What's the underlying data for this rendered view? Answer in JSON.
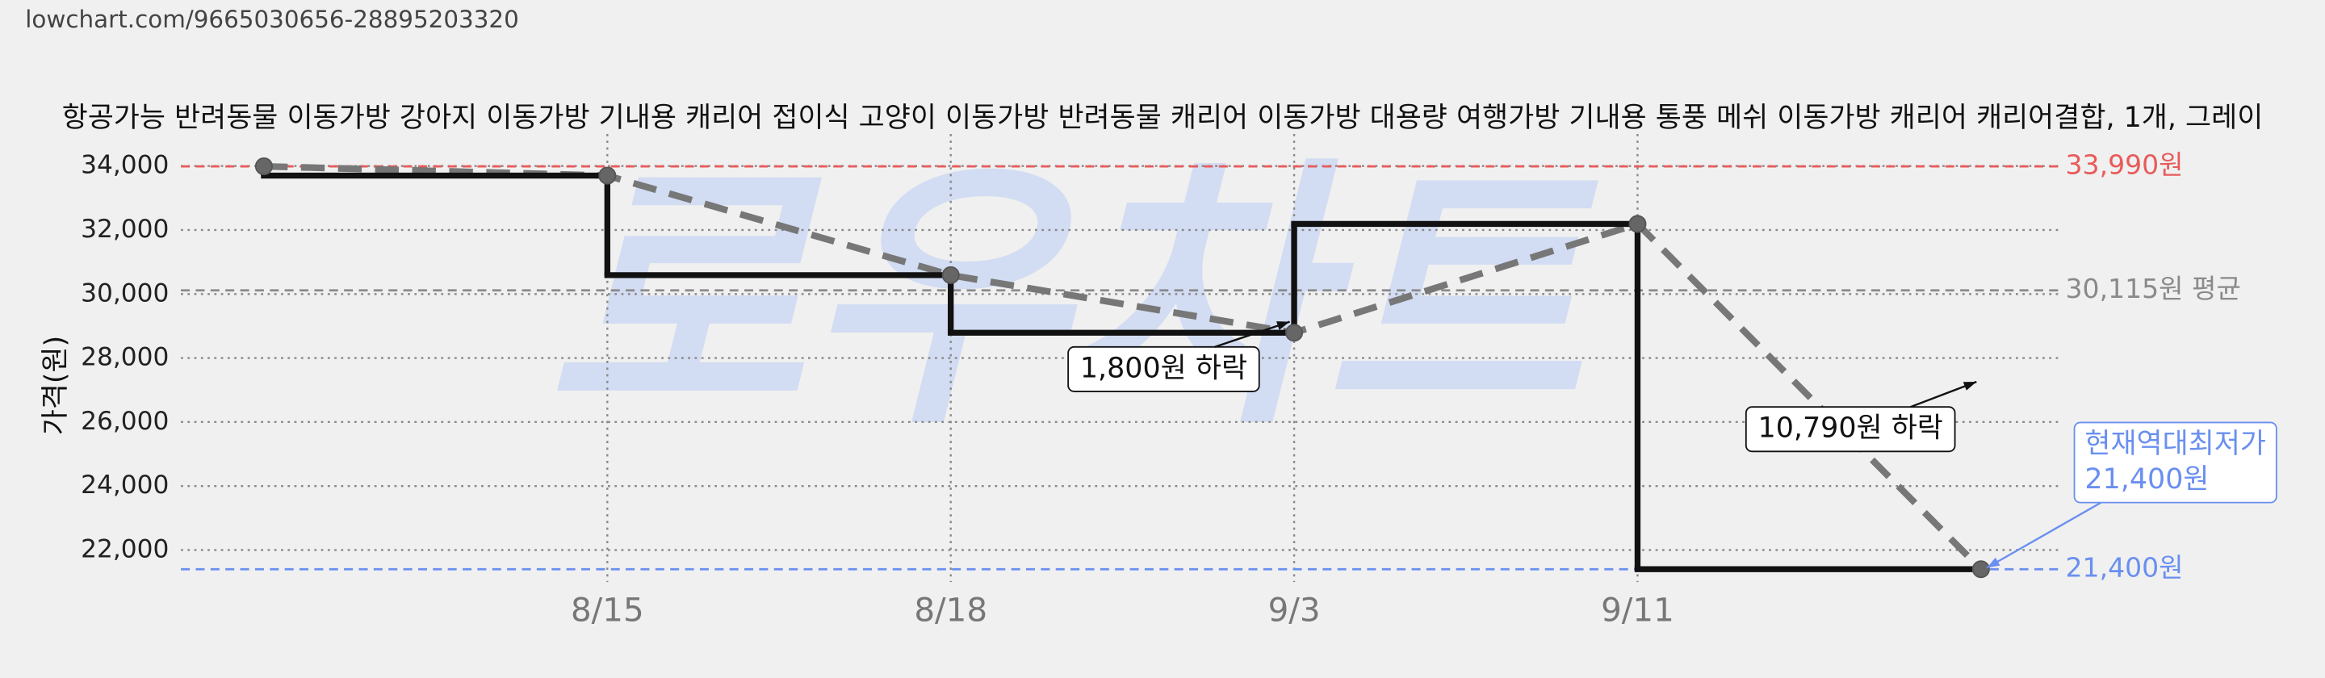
{
  "chart_data": {
    "type": "line",
    "step": true,
    "url": "lowchart.com/9665030656-28895203320",
    "title": "항공가능 반려동물 이동가방 강아지 이동가방 기내용 캐리어 접이식 고양이 이동가방 반려동물 캐리어 이동가방 대용량 여행가방 기내용 통풍 메쉬 이동가방 캐리어 캐리어결합, 1개, 그레이",
    "watermark": "로우차트",
    "y_label": "가격(원)",
    "categories": [
      null,
      "8/15",
      "8/18",
      "9/3",
      "9/11",
      null
    ],
    "values": [
      33990,
      33700,
      30590,
      28790,
      32190,
      21400
    ],
    "color": "#111111",
    "trend_color": "#777777",
    "ylim": [
      21000,
      35000
    ],
    "yticks": [
      {
        "value": 22000,
        "label": "22,000"
      },
      {
        "value": 24000,
        "label": "24,000"
      },
      {
        "value": 26000,
        "label": "26,000"
      },
      {
        "value": 28000,
        "label": "28,000"
      },
      {
        "value": 30000,
        "label": "30,000"
      },
      {
        "value": 32000,
        "label": "32,000"
      },
      {
        "value": 34000,
        "label": "34,000"
      }
    ],
    "grid": true,
    "reference_lines": [
      {
        "value": 33990,
        "label": "33,990원",
        "color": "#e85b5b"
      },
      {
        "value": 30115,
        "label": "30,115원 평균",
        "color": "#8a8a8a"
      },
      {
        "value": 21400,
        "label": "21,400원",
        "color": "#6a8ff0"
      }
    ],
    "annotations": [
      {
        "label": "1,800원 하락",
        "value": 1800
      },
      {
        "label": "10,790원 하락",
        "value": 10790
      }
    ],
    "lowest_note": {
      "lines": [
        "현재역대최저가",
        "21,400원"
      ],
      "value": 21400,
      "color": "#6a8ff0"
    }
  }
}
